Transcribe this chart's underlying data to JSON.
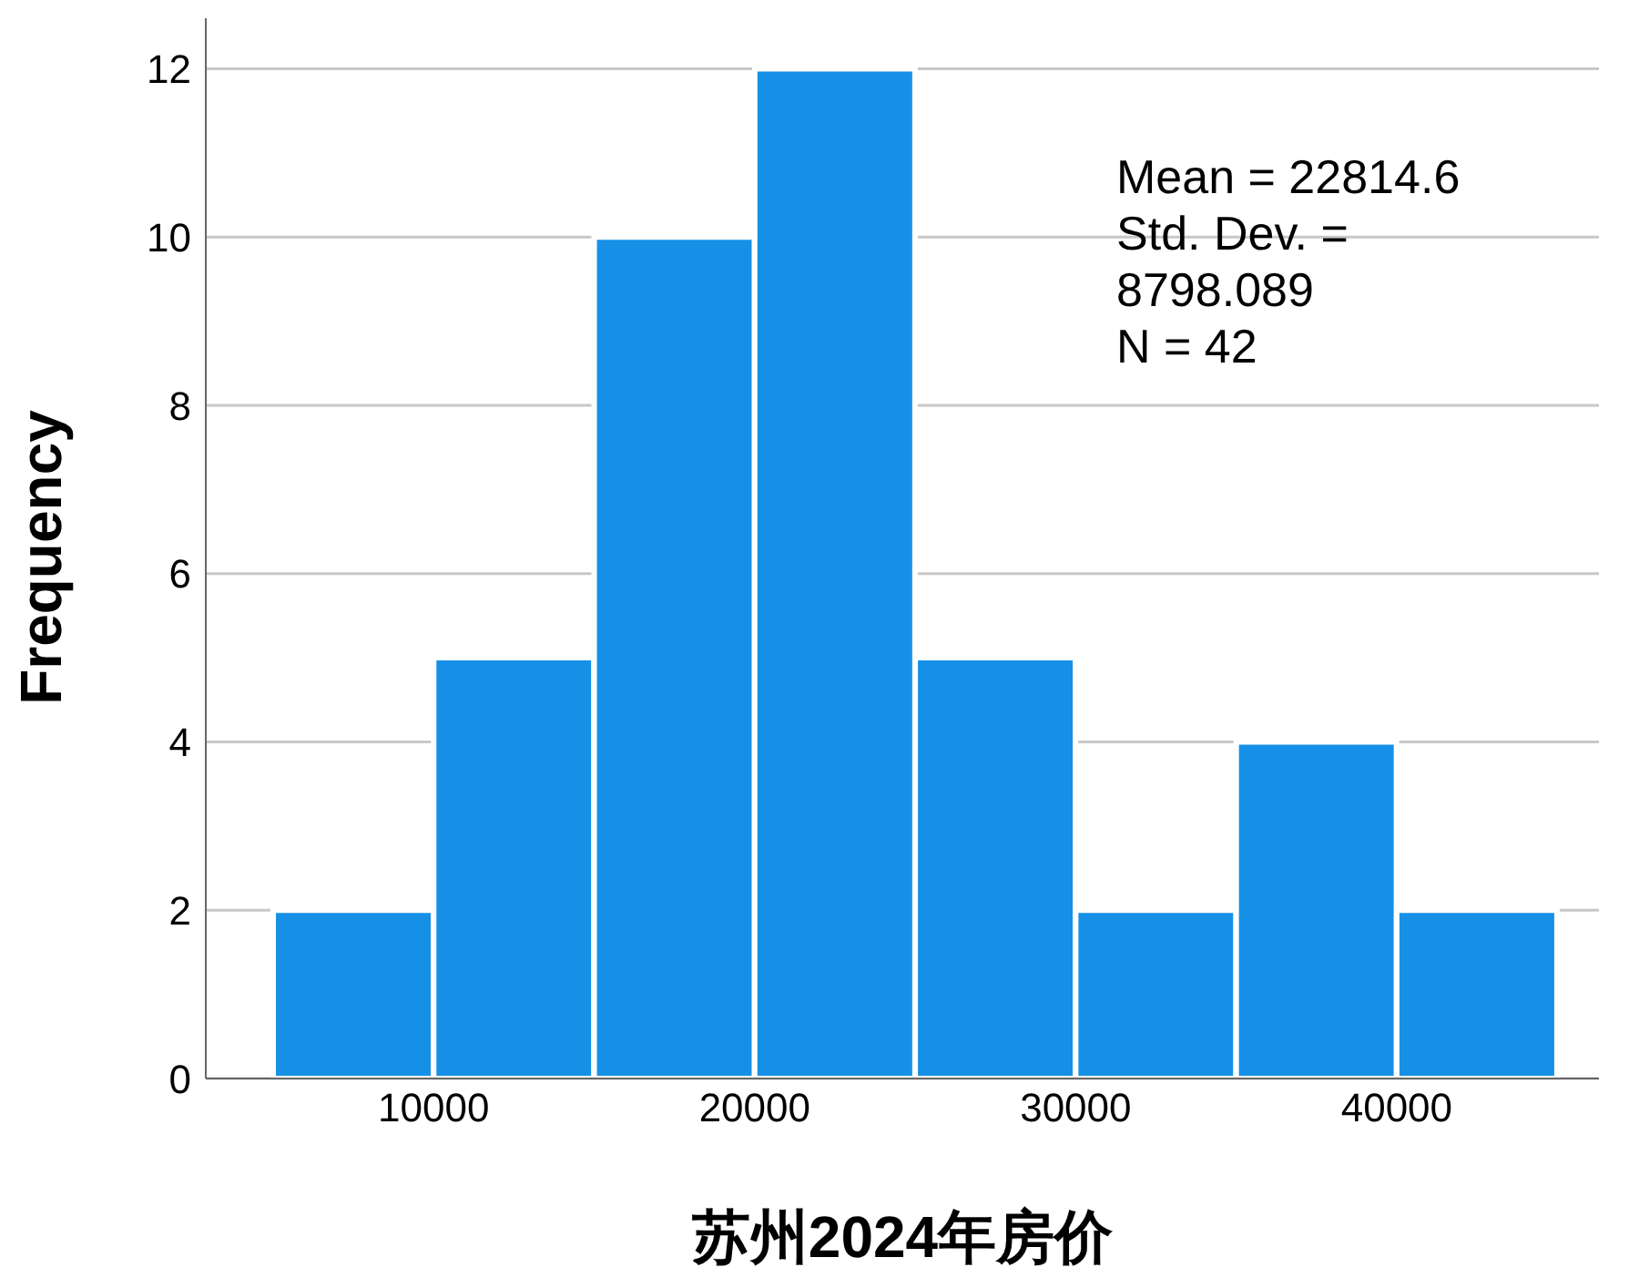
{
  "chart_data": {
    "type": "histogram",
    "xlabel": "苏州2024年房价",
    "ylabel": "Frequency",
    "bins": [
      5000,
      10000,
      15000,
      20000,
      25000,
      30000,
      35000,
      40000,
      45000
    ],
    "values": [
      2,
      5,
      10,
      12,
      5,
      2,
      4,
      2
    ],
    "color": "#1690e6",
    "xlim": [
      2900,
      46300
    ],
    "xticks": [
      10000,
      20000,
      30000,
      40000
    ],
    "ylim": [
      0,
      12.6
    ],
    "yticks": [
      0,
      2,
      4,
      6,
      8,
      10,
      12
    ],
    "grid": "y",
    "annotations": [
      "Mean = 22814.6",
      "Std. Dev. = 8798.089",
      "N = 42"
    ]
  }
}
